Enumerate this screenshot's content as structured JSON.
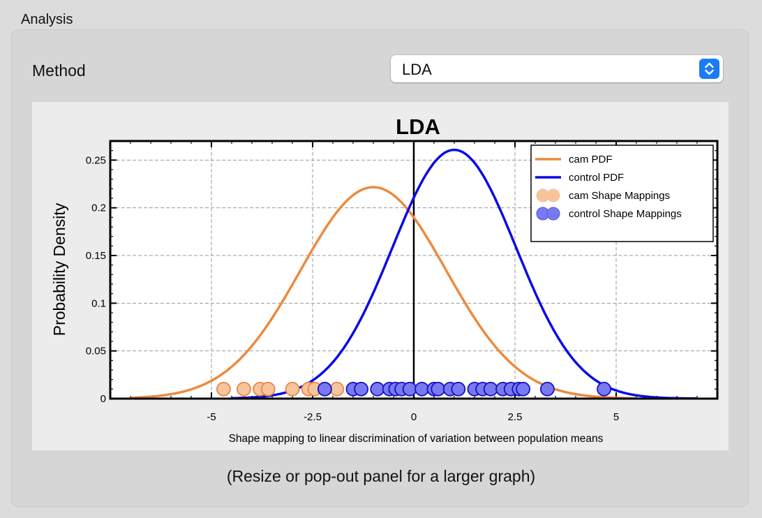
{
  "panel": {
    "title": "Analysis",
    "method_label": "Method",
    "method_value": "LDA",
    "footer": "(Resize or pop-out panel for a larger graph)"
  },
  "icons": {
    "select_stepper": "chevron-up-down-icon"
  },
  "colors": {
    "accent": "#1a7cf5",
    "cam": "#eb8a3f",
    "control": "#0a0ae6"
  },
  "chart_data": {
    "type": "line",
    "title": "LDA",
    "xlabel": "Shape mapping to linear discrimination of variation between population means",
    "ylabel": "Probability Density",
    "xlim": [
      -7.5,
      7.5
    ],
    "ylim": [
      0,
      0.27
    ],
    "x_ticks": [
      -5,
      -2.5,
      0,
      2.5,
      5
    ],
    "x_tick_labels": [
      "-5",
      "-2.5",
      "0",
      "2.5",
      "5"
    ],
    "y_ticks": [
      0,
      0.05,
      0.1,
      0.15,
      0.2,
      0.25
    ],
    "y_tick_labels": [
      "0",
      "0.05",
      "0.1",
      "0.15",
      "0.2",
      "0.25"
    ],
    "grid": true,
    "legend_position": "top-right",
    "series": [
      {
        "name": "cam PDF",
        "kind": "pdf",
        "color": "#eb8a3f",
        "mean": -1.0,
        "sd": 1.8,
        "x_range": [
          -7,
          5.5
        ]
      },
      {
        "name": "control PDF",
        "kind": "pdf",
        "color": "#0a0ae6",
        "mean": 1.0,
        "sd": 1.53,
        "x_range": [
          -4.5,
          7
        ]
      },
      {
        "name": "cam Shape Mappings",
        "kind": "points",
        "color": "#f7c49c",
        "edge": "#e8874a",
        "y": 0.01,
        "x": [
          -4.7,
          -4.2,
          -3.8,
          -3.6,
          -3.0,
          -2.6,
          -2.45,
          -2.2,
          -1.9
        ]
      },
      {
        "name": "control Shape Mappings",
        "kind": "points",
        "color": "#7a7af0",
        "edge": "#1212c8",
        "y": 0.01,
        "x": [
          -2.2,
          -1.5,
          -1.3,
          -0.9,
          -0.6,
          -0.45,
          -0.3,
          -0.1,
          0.2,
          0.5,
          0.6,
          0.9,
          1.1,
          1.5,
          1.7,
          1.9,
          2.2,
          2.4,
          2.6,
          2.7,
          3.3,
          4.7
        ]
      }
    ]
  }
}
